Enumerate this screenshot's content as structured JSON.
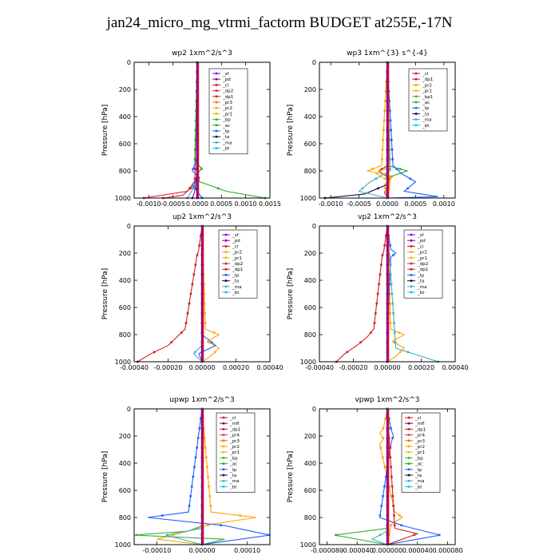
{
  "title": "jan24_micro_mg_vtrmi_factorm  BUDGET at255E,-17N",
  "colors": {
    "sf": "#8000ff",
    "pd": "#8b008b",
    "cl": "#e0102a",
    "dp2": "#c0304a",
    "dp1": "#cc2020",
    "pr3": "#ff6a00",
    "pr2": "#ffa500",
    "pr1": "#e6c000",
    "bp": "#3cb040",
    "ac": "#22aa22",
    "tp": "#2060ff",
    "ta": "#101040",
    "ma": "#40b0c0",
    "bt": "#00c8ff",
    "mfl": "#800040",
    "pr4": "#d04060"
  },
  "chart_data": [
    {
      "type": "line",
      "title": "wp2   1xm^2/s^3",
      "ylabel": "Pressure [hPa]",
      "xlim": [
        -0.0013,
        0.0015
      ],
      "ylim": [
        1000,
        0
      ],
      "xticks": [
        "-0.0010",
        "-0.0005",
        "0.0000",
        "0.0005",
        "0.0010",
        "0.0015"
      ],
      "xtick_values": [
        -0.001,
        -0.0005,
        0,
        0.0005,
        0.001,
        0.0015
      ],
      "yticks": [
        "0",
        "200",
        "400",
        "600",
        "800",
        "1000"
      ],
      "ytick_values": [
        0,
        200,
        400,
        600,
        800,
        1000
      ],
      "legend": [
        "_sf",
        "_pd",
        "_cl",
        "_dp2",
        "_dp1",
        "_pr3",
        "_pr2",
        "_pr1",
        "_bp",
        "_ac",
        "_tp",
        "_ta",
        "_ma",
        "_bt"
      ],
      "series": [
        {
          "name": "_sf",
          "color": "sf",
          "p": [
            0,
            600,
            900,
            1000
          ],
          "v": [
            0,
            0,
            0,
            0
          ]
        },
        {
          "name": "_pd",
          "color": "pd",
          "p": [
            0,
            800,
            950,
            1000
          ],
          "v": [
            0,
            0,
            -5e-05,
            -0.0001
          ]
        },
        {
          "name": "_cl",
          "color": "cl",
          "p": [
            0,
            850,
            950,
            1000
          ],
          "v": [
            0,
            0,
            -0.0002,
            -0.0011
          ]
        },
        {
          "name": "_dp1",
          "color": "dp1",
          "p": [
            0,
            900,
            980,
            1000
          ],
          "v": [
            0,
            -5e-05,
            -0.0003,
            -0.0007
          ]
        },
        {
          "name": "_ac",
          "color": "ac",
          "p": [
            0,
            740,
            780,
            830,
            880,
            950,
            1000
          ],
          "v": [
            0,
            -5e-05,
            0.0001,
            -2e-05,
            5e-05,
            0.0006,
            0.0014
          ]
        },
        {
          "name": "_tp",
          "color": "tp",
          "p": [
            0,
            700,
            800,
            850,
            900,
            1000
          ],
          "v": [
            0,
            0,
            -0.0001,
            5e-05,
            -0.0001,
            0.0001
          ]
        },
        {
          "name": "_ma",
          "color": "ma",
          "p": [
            0,
            800,
            860,
            940,
            1000
          ],
          "v": [
            0,
            0,
            2e-05,
            -0.0001,
            -0.0002
          ]
        },
        {
          "name": "_bt",
          "color": "bt",
          "p": [
            0,
            800,
            1000
          ],
          "v": [
            0,
            0,
            2e-05
          ]
        }
      ]
    },
    {
      "type": "line",
      "title": "wp3   1xm^{3} s^{-4}",
      "ylabel": "Pressure [hPa]",
      "xlim": [
        -0.0012,
        0.0012
      ],
      "ylim": [
        1000,
        0
      ],
      "xticks": [
        "-0.0010",
        "-0.0005",
        "0.0000",
        "0.0005",
        "0.0010"
      ],
      "xtick_values": [
        -0.001,
        -0.0005,
        0,
        0.0005,
        0.001
      ],
      "yticks": [
        "0",
        "200",
        "400",
        "600",
        "800",
        "1000"
      ],
      "ytick_values": [
        0,
        200,
        400,
        600,
        800,
        1000
      ],
      "legend": [
        "_cl",
        "_dp1",
        "_pr2",
        "_pr1",
        "_bp1",
        "_ac",
        "_tp",
        "_ta",
        "_ma",
        "_bt"
      ],
      "series": [
        {
          "name": "_cl",
          "color": "cl",
          "p": [
            0,
            500,
            1000
          ],
          "v": [
            0,
            0,
            0
          ]
        },
        {
          "name": "_dp1",
          "color": "dp1",
          "p": [
            0,
            760,
            800,
            860,
            960,
            1000
          ],
          "v": [
            0,
            0,
            -0.00015,
            5e-05,
            -5e-05,
            0
          ]
        },
        {
          "name": "_pr2",
          "color": "pr2",
          "p": [
            0,
            760,
            800,
            840,
            900,
            1000
          ],
          "v": [
            0,
            -0.0001,
            -0.00035,
            0.0001,
            -5e-05,
            0
          ]
        },
        {
          "name": "_pr1",
          "color": "pr1",
          "p": [
            0,
            760,
            820,
            880,
            1000
          ],
          "v": [
            0,
            5e-05,
            -0.0002,
            5e-05,
            0
          ]
        },
        {
          "name": "_ac",
          "color": "ac",
          "p": [
            0,
            760,
            800,
            850,
            1000
          ],
          "v": [
            0,
            0,
            0.00035,
            0,
            0
          ]
        },
        {
          "name": "_tp",
          "color": "tp",
          "p": [
            0,
            760,
            820,
            880,
            950,
            990,
            1000
          ],
          "v": [
            0,
            0.0001,
            0.00025,
            0.0005,
            0.0003,
            0.0009,
            0
          ]
        },
        {
          "name": "_ta",
          "color": "ta",
          "p": [
            0,
            900,
            970,
            1000
          ],
          "v": [
            0,
            0,
            -0.0004,
            -0.0011
          ]
        },
        {
          "name": "_ma",
          "color": "ma",
          "p": [
            0,
            800,
            880,
            950,
            1000
          ],
          "v": [
            0,
            5e-05,
            -0.0003,
            -0.0005,
            0
          ]
        },
        {
          "name": "_bt",
          "color": "bt",
          "p": [
            0,
            1000
          ],
          "v": [
            0,
            0
          ]
        }
      ]
    },
    {
      "type": "line",
      "title": "up2   1xm^2/s^3",
      "ylabel": "Pressure [hPa]",
      "xlim": [
        -0.0004,
        0.0004
      ],
      "ylim": [
        1000,
        0
      ],
      "xticks": [
        "-0.00040",
        "-0.00020",
        "0.00000",
        "0.00020",
        "0.00040"
      ],
      "xtick_values": [
        -0.0004,
        -0.0002,
        0,
        0.0002,
        0.0004
      ],
      "yticks": [
        "0",
        "200",
        "400",
        "600",
        "800",
        "1000"
      ],
      "ytick_values": [
        0,
        200,
        400,
        600,
        800,
        1000
      ],
      "legend": [
        "_sf",
        "_pd",
        "_cl",
        "_pr2",
        "_pr1",
        "_dp2",
        "_dp1",
        "_tp",
        "_ta",
        "_ma",
        "_bt"
      ],
      "series": [
        {
          "name": "_sf",
          "color": "sf",
          "p": [
            0,
            1000
          ],
          "v": [
            0,
            0
          ]
        },
        {
          "name": "_cl",
          "color": "cl",
          "p": [
            0,
            500,
            1000
          ],
          "v": [
            0,
            0,
            0
          ]
        },
        {
          "name": "_pr2",
          "color": "pr2",
          "p": [
            0,
            760,
            800,
            850,
            900,
            960,
            1000
          ],
          "v": [
            0,
            2e-05,
            0.0001,
            3e-05,
            0.0001,
            5e-05,
            0
          ]
        },
        {
          "name": "_dp1",
          "color": "dp1",
          "p": [
            0,
            180,
            220,
            760,
            820,
            880,
            940,
            1000
          ],
          "v": [
            0,
            -2e-05,
            -3e-05,
            -0.0001,
            -0.00015,
            -0.0002,
            -0.0003,
            -0.00038
          ]
        },
        {
          "name": "_tp",
          "color": "tp",
          "p": [
            0,
            800,
            880,
            940,
            1000
          ],
          "v": [
            0,
            0,
            8e-05,
            -2e-05,
            0
          ]
        },
        {
          "name": "_ma",
          "color": "ma",
          "p": [
            0,
            880,
            940,
            1000
          ],
          "v": [
            0,
            0,
            -5e-05,
            0
          ]
        }
      ]
    },
    {
      "type": "line",
      "title": "vp2   1xm^2/s^3",
      "ylabel": "Pressure [hPa]",
      "xlim": [
        -0.0004,
        0.0004
      ],
      "ylim": [
        1000,
        0
      ],
      "xticks": [
        "-0.00040",
        "-0.00020",
        "0.00000",
        "0.00020",
        "0.00040"
      ],
      "xtick_values": [
        -0.0004,
        -0.0002,
        0,
        0.0002,
        0.0004
      ],
      "yticks": [
        "0",
        "200",
        "400",
        "600",
        "800",
        "1000"
      ],
      "ytick_values": [
        0,
        200,
        400,
        600,
        800,
        1000
      ],
      "legend": [
        "_sf",
        "_pd",
        "_cl",
        "_pr2",
        "_pr1",
        "_dp2",
        "_dp1",
        "_tp",
        "_ta",
        "_ma",
        "_bt"
      ],
      "series": [
        {
          "name": "_sf",
          "color": "sf",
          "p": [
            0,
            1000
          ],
          "v": [
            0,
            0
          ]
        },
        {
          "name": "_cl",
          "color": "cl",
          "p": [
            0,
            500,
            1000
          ],
          "v": [
            0,
            0,
            0
          ]
        },
        {
          "name": "_pr2",
          "color": "pr2",
          "p": [
            0,
            760,
            800,
            850,
            900,
            960,
            1000
          ],
          "v": [
            0,
            2e-05,
            0.0001,
            3e-05,
            0.0001,
            5e-05,
            0
          ]
        },
        {
          "name": "_tp",
          "color": "tp",
          "p": [
            0,
            170,
            200,
            230,
            800,
            1000
          ],
          "v": [
            0,
            2e-05,
            5e-05,
            2e-05,
            0,
            0
          ]
        },
        {
          "name": "_dp1",
          "color": "dp1",
          "p": [
            0,
            180,
            220,
            760,
            820,
            880,
            940,
            1000
          ],
          "v": [
            0,
            -2e-05,
            -3e-05,
            -8e-05,
            -0.00012,
            -0.00018,
            -0.00025,
            -0.0003
          ]
        },
        {
          "name": "_ma",
          "color": "ma",
          "p": [
            0,
            900,
            1000
          ],
          "v": [
            0,
            5e-05,
            0.0003
          ]
        }
      ]
    },
    {
      "type": "line",
      "title": "upwp   1xm^2/s^3",
      "ylabel": "Pressure [hPa]",
      "xlim": [
        -0.00015,
        0.00015
      ],
      "ylim": [
        1000,
        0
      ],
      "xticks": [
        "-0.00010",
        "0.00000",
        "0.00010"
      ],
      "xtick_values": [
        -0.0001,
        0,
        0.0001
      ],
      "yticks": [
        "0",
        "200",
        "400",
        "600",
        "800",
        "1000"
      ],
      "ytick_values": [
        0,
        200,
        400,
        600,
        800,
        1000
      ],
      "legend": [
        "_cl",
        "_mfl",
        "_dp1",
        "_pr4",
        "_pr3",
        "_pr2",
        "_pr1",
        "_bp",
        "_ac",
        "_tp",
        "_ta",
        "_ma",
        "_bt"
      ],
      "series": [
        {
          "name": "_cl",
          "color": "cl",
          "p": [
            0,
            500,
            1000
          ],
          "v": [
            0,
            0,
            0
          ]
        },
        {
          "name": "_mfl",
          "color": "mfl",
          "p": [
            0,
            1000
          ],
          "v": [
            0,
            0
          ]
        },
        {
          "name": "_pr2",
          "color": "pr2",
          "p": [
            0,
            760,
            800,
            850,
            900,
            960,
            1000
          ],
          "v": [
            0,
            2e-05,
            0.00012,
            2e-05,
            -3e-05,
            -0.0001,
            0
          ]
        },
        {
          "name": "_bp",
          "color": "bp",
          "p": [
            0,
            860,
            900,
            930,
            960,
            1000
          ],
          "v": [
            0,
            0,
            -3e-05,
            -0.00015,
            5e-05,
            0
          ]
        },
        {
          "name": "_tp",
          "color": "tp",
          "p": [
            0,
            760,
            800,
            860,
            930,
            1000
          ],
          "v": [
            0,
            -3e-05,
            -0.00012,
            5e-05,
            0.00015,
            0
          ]
        },
        {
          "name": "_ma",
          "color": "ma",
          "p": [
            0,
            880,
            930,
            1000
          ],
          "v": [
            0,
            0,
            -8e-05,
            0
          ]
        }
      ]
    },
    {
      "type": "line",
      "title": "vpwp   1xm^2/s^3",
      "ylabel": "Pressure [hPa]",
      "xlim": [
        -9e-05,
        9e-05
      ],
      "ylim": [
        1000,
        0
      ],
      "xticks": [
        "-0.000080",
        "-0.000040",
        "0.000000",
        "0.000040",
        "0.000080"
      ],
      "xtick_values": [
        -8e-05,
        -4e-05,
        0,
        4e-05,
        8e-05
      ],
      "yticks": [
        "0",
        "200",
        "400",
        "600",
        "800",
        "1000"
      ],
      "ytick_values": [
        0,
        200,
        400,
        600,
        800,
        1000
      ],
      "legend": [
        "_cl",
        "_mfl",
        "_dp1",
        "_pr4",
        "_pr3",
        "_pr2",
        "_pr1",
        "_bp",
        "_ac",
        "_tp",
        "_ta",
        "_ma",
        "_bt"
      ],
      "series": [
        {
          "name": "_cl",
          "color": "cl",
          "p": [
            0,
            500,
            1000
          ],
          "v": [
            0,
            0,
            0
          ]
        },
        {
          "name": "_mfl",
          "color": "mfl",
          "p": [
            0,
            1000
          ],
          "v": [
            0,
            0
          ]
        },
        {
          "name": "_pr2",
          "color": "pr2",
          "p": [
            0,
            140,
            180,
            220,
            260,
            760,
            800,
            850,
            1000
          ],
          "v": [
            0,
            -5e-06,
            -1e-05,
            -5e-06,
            -1e-05,
            1e-05,
            2e-05,
            5e-06,
            0
          ]
        },
        {
          "name": "_tp",
          "color": "tp",
          "p": [
            0,
            150,
            200,
            250,
            800,
            860,
            930,
            1000
          ],
          "v": [
            0,
            5e-06,
            8e-06,
            5e-06,
            -1e-05,
            2e-05,
            7e-05,
            0
          ]
        },
        {
          "name": "_bp",
          "color": "bp",
          "p": [
            0,
            880,
            930,
            1000
          ],
          "v": [
            0,
            0,
            -7e-05,
            0
          ]
        },
        {
          "name": "_dp1",
          "color": "dp1",
          "p": [
            0,
            880,
            920,
            960,
            1000
          ],
          "v": [
            0,
            1e-05,
            4e-05,
            2e-05,
            0
          ]
        },
        {
          "name": "_ma",
          "color": "ma",
          "p": [
            0,
            900,
            960,
            1000
          ],
          "v": [
            0,
            0,
            -2e-05,
            0
          ]
        }
      ]
    }
  ]
}
